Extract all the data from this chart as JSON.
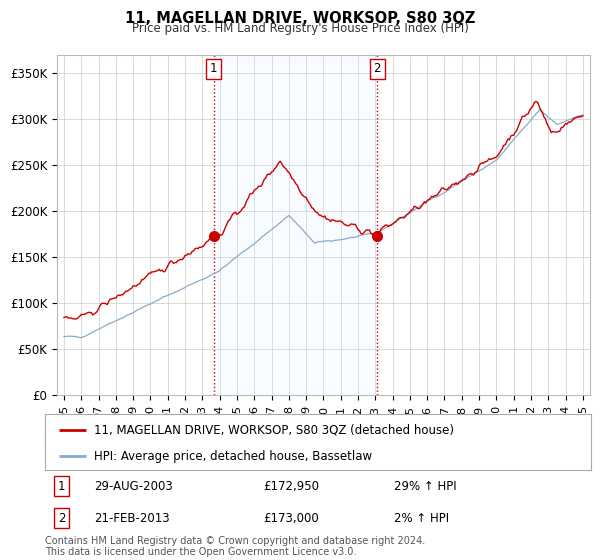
{
  "title": "11, MAGELLAN DRIVE, WORKSOP, S80 3QZ",
  "subtitle": "Price paid vs. HM Land Registry's House Price Index (HPI)",
  "ylabel_values": [
    "£0",
    "£50K",
    "£100K",
    "£150K",
    "£200K",
    "£250K",
    "£300K",
    "£350K"
  ],
  "yticks": [
    0,
    50000,
    100000,
    150000,
    200000,
    250000,
    300000,
    350000
  ],
  "ylim": [
    0,
    370000
  ],
  "xlim_start": 1994.6,
  "xlim_end": 2025.4,
  "line1_color": "#cc0000",
  "line2_color": "#88aacc",
  "fill_color": "#ddeeff",
  "vline_color": "#cc0000",
  "marker1_date": 2003.66,
  "marker1_value": 172950,
  "marker2_date": 2013.12,
  "marker2_value": 173000,
  "legend_line1": "11, MAGELLAN DRIVE, WORKSOP, S80 3QZ (detached house)",
  "legend_line2": "HPI: Average price, detached house, Bassetlaw",
  "table_row1_num": "1",
  "table_row1_date": "29-AUG-2003",
  "table_row1_price": "£172,950",
  "table_row1_change": "29% ↑ HPI",
  "table_row2_num": "2",
  "table_row2_date": "21-FEB-2013",
  "table_row2_price": "£173,000",
  "table_row2_change": "2% ↑ HPI",
  "footer": "Contains HM Land Registry data © Crown copyright and database right 2024.\nThis data is licensed under the Open Government Licence v3.0.",
  "background_color": "#ffffff",
  "grid_color": "#cccccc"
}
